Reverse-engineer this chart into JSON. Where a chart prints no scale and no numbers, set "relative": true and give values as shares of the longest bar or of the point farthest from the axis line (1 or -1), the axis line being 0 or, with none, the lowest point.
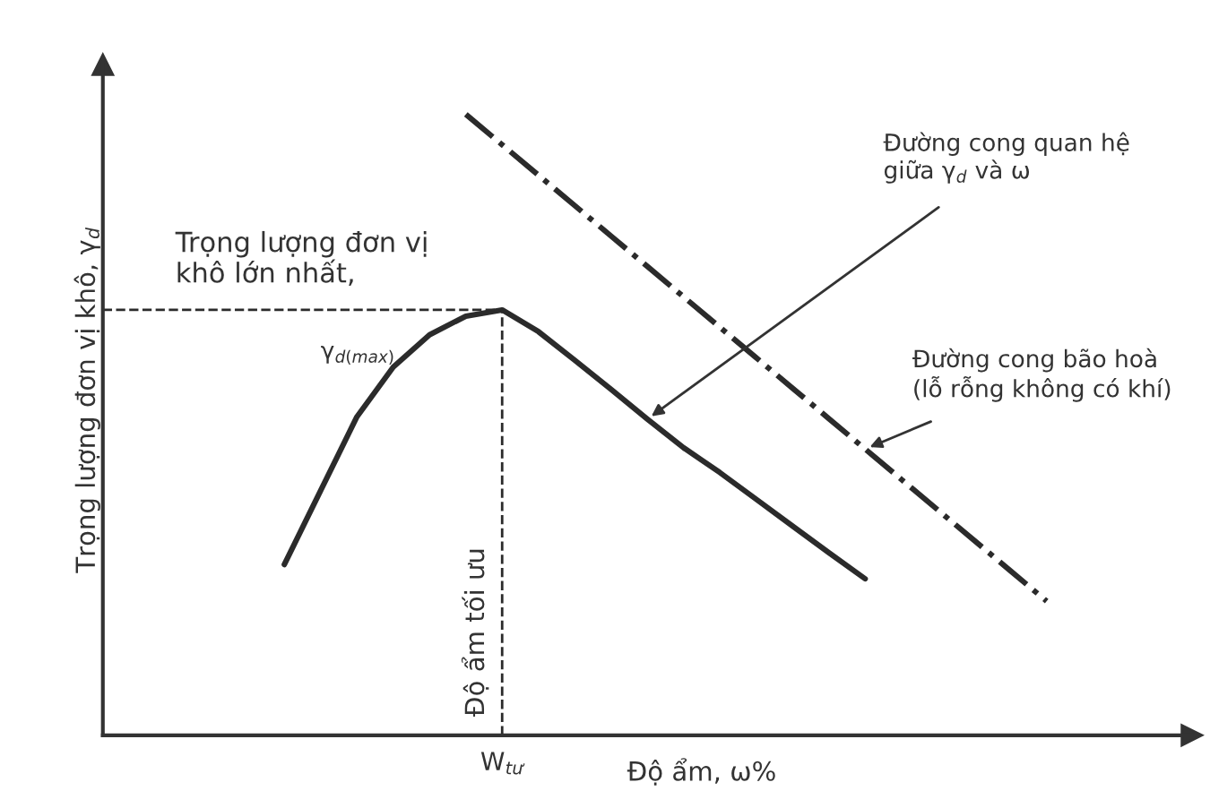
{
  "chart_data": {
    "type": "line",
    "relative": true,
    "xlabel": "Độ ẩm, ω%",
    "ylabel": "Trọng lượng đơn vị khô, γ$_{d}$",
    "categories": [
      null,
      null,
      null,
      null,
      null,
      null,
      null,
      null,
      null,
      null,
      null,
      null,
      null,
      null,
      null,
      null,
      null,
      null,
      null,
      null,
      null,
      null,
      null
    ],
    "series": [
      {
        "color": "#2b2b2b",
        "line_style": "solid",
        "values": [
          null,
          0.275,
          0.394,
          0.513,
          0.593,
          0.645,
          0.675,
          0.685,
          0.65,
          0.604,
          0.557,
          0.509,
          0.463,
          0.423,
          0.38,
          0.337,
          0.294,
          0.252,
          null,
          null,
          null,
          null,
          null
        ]
      },
      {
        "color": "#2b2b2b",
        "line_style": "dashdot",
        "values": [
          null,
          null,
          null,
          null,
          null,
          null,
          1.0,
          0.951,
          0.902,
          0.853,
          0.804,
          0.755,
          0.706,
          0.657,
          0.608,
          0.559,
          0.51,
          0.461,
          0.412,
          0.363,
          0.314,
          0.265,
          0.216
        ]
      }
    ],
    "ref_lines": [
      {
        "axis": "y",
        "value": 0.685,
        "label": "Trọng lượng đơn vị\nkhô lớn nhất,",
        "line_style": "dashed",
        "color": "#2b2b2b"
      }
    ],
    "annotations": [
      "γ$_{d(max)}$",
      "W$_{tư}$",
      "Độ ẩm tối ưu",
      "Đường cong quan hệ\ngiữa γ$_{d}$ và ω",
      "Đường cong bão hoà\n(lỗ rỗng không có khí)"
    ],
    "legend": false,
    "marker": "none"
  }
}
